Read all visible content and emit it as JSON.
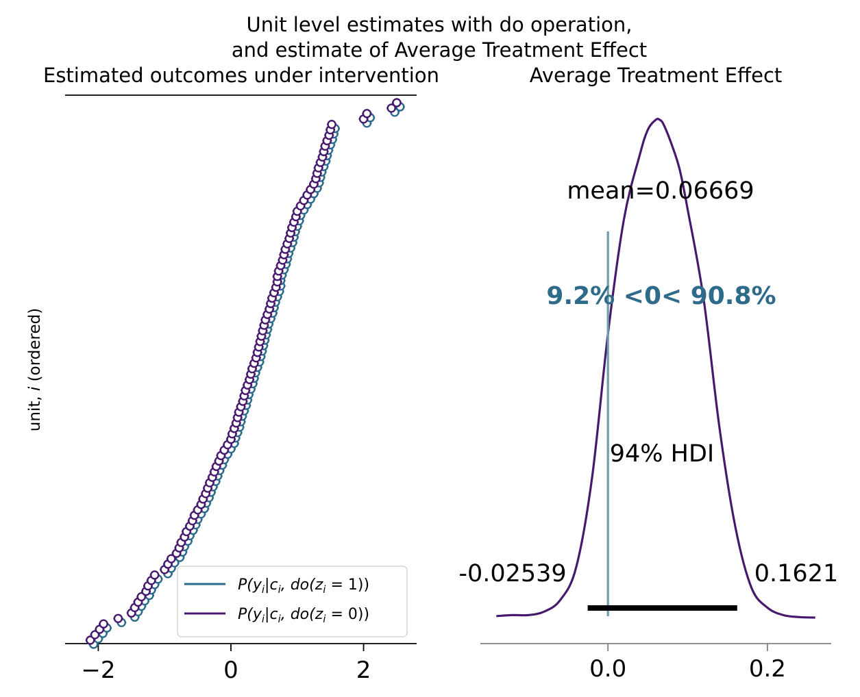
{
  "suptitle_line1": "Unit level estimates with do operation,",
  "suptitle_line2": "and estimate of Average Treatment Effect",
  "colors": {
    "do1": "#2a6a8c",
    "do0": "#46196e",
    "ref_line": "#6f9cad",
    "prob_text": "#2e6a8a",
    "hdi": "#000000",
    "axis_grey": "#808080"
  },
  "chart_data": [
    {
      "type": "scatter",
      "title": "Estimated outcomes under intervention",
      "ylabel": "unit, i (ordered)",
      "xlim": [
        -2.5,
        2.8
      ],
      "xticks": [
        -2,
        0,
        2
      ],
      "xtick_labels": [
        "−2",
        "0",
        "2"
      ],
      "legend_placement": "lower-right",
      "series": [
        {
          "name": "P(y_i|c_i, do(z_i = 1))",
          "color": "#2a6a8c",
          "offset": 0.05,
          "vertical_shift": 6
        },
        {
          "name": "P(y_i|c_i, do(z_i = 0))",
          "color": "#46196e",
          "offset": 0.0,
          "vertical_shift": 0
        }
      ],
      "unit_count": 100,
      "unit_means_ordered": [
        -2.12,
        -2.05,
        -1.98,
        -1.92,
        -1.7,
        -1.5,
        -1.45,
        -1.4,
        -1.35,
        -1.28,
        -1.25,
        -1.2,
        -1.15,
        -1.0,
        -0.95,
        -0.9,
        -0.82,
        -0.78,
        -0.75,
        -0.7,
        -0.67,
        -0.62,
        -0.58,
        -0.55,
        -0.5,
        -0.45,
        -0.42,
        -0.38,
        -0.35,
        -0.32,
        -0.28,
        -0.25,
        -0.22,
        -0.18,
        -0.15,
        -0.1,
        -0.05,
        0.0,
        0.02,
        0.05,
        0.08,
        0.1,
        0.12,
        0.15,
        0.18,
        0.2,
        0.22,
        0.25,
        0.28,
        0.3,
        0.32,
        0.35,
        0.38,
        0.4,
        0.42,
        0.44,
        0.46,
        0.48,
        0.5,
        0.52,
        0.55,
        0.58,
        0.6,
        0.62,
        0.65,
        0.68,
        0.7,
        0.7,
        0.72,
        0.75,
        0.78,
        0.8,
        0.82,
        0.85,
        0.88,
        0.9,
        0.92,
        0.95,
        0.98,
        1.0,
        1.05,
        1.1,
        1.15,
        1.2,
        1.25,
        1.28,
        1.3,
        1.32,
        1.35,
        1.38,
        1.4,
        1.42,
        1.45,
        1.48,
        1.5,
        1.52,
        2.0,
        2.05,
        2.42,
        2.5
      ]
    },
    {
      "type": "line",
      "title": "Average Treatment Effect",
      "xlim": [
        -0.16,
        0.28
      ],
      "xticks": [
        0.0,
        0.2
      ],
      "xtick_labels": [
        "0.0",
        "0.2"
      ],
      "ref_val": 0.0,
      "mean_label": "mean=0.06669",
      "prob_label": "9.2% <0< 90.8%",
      "hdi_label": "94% HDI",
      "hdi_low_label": "-0.02539",
      "hdi_high_label": "0.1621",
      "hdi": [
        -0.02539,
        0.1621
      ],
      "density": {
        "x": [
          -0.14,
          -0.12,
          -0.1,
          -0.08,
          -0.06,
          -0.04,
          -0.02,
          0.0,
          0.02,
          0.04,
          0.05,
          0.06,
          0.065,
          0.07,
          0.08,
          0.09,
          0.1,
          0.12,
          0.14,
          0.16,
          0.18,
          0.2,
          0.22,
          0.24,
          0.26
        ],
        "y": [
          0.003,
          0.005,
          0.005,
          0.012,
          0.035,
          0.1,
          0.28,
          0.57,
          0.8,
          0.93,
          0.98,
          1.0,
          1.0,
          0.99,
          0.95,
          0.9,
          0.82,
          0.64,
          0.38,
          0.18,
          0.06,
          0.02,
          0.005,
          0.001,
          0.0
        ]
      }
    }
  ]
}
